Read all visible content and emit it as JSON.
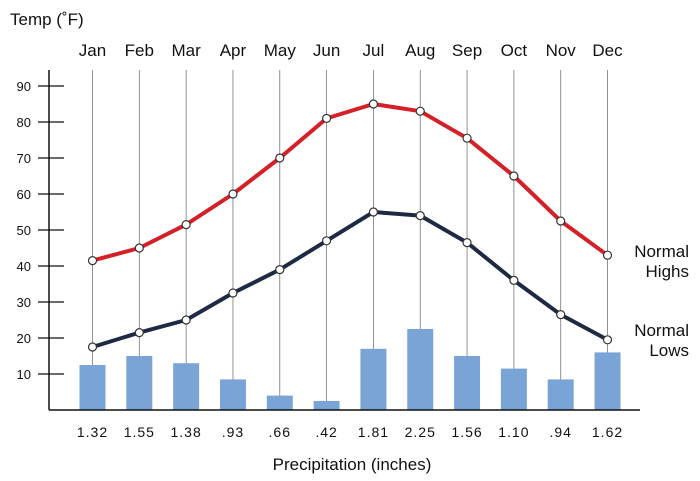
{
  "chart_data": {
    "type": "line",
    "ylabel": "Temp (˚F)",
    "xlabel": "Precipitation (inches)",
    "categories": [
      "Jan",
      "Feb",
      "Mar",
      "Apr",
      "May",
      "Jun",
      "Jul",
      "Aug",
      "Sep",
      "Oct",
      "Nov",
      "Dec"
    ],
    "y_ticks": [
      "10",
      "20",
      "30",
      "40",
      "50",
      "60",
      "70",
      "80",
      "90"
    ],
    "ylim": [
      0,
      100
    ],
    "grid": {
      "vertical": true,
      "horizontal": false
    },
    "series": [
      {
        "name": "Normal Highs",
        "name_lines": [
          "Normal",
          "Highs"
        ],
        "color": "#d42027",
        "values": [
          41.5,
          45,
          51.5,
          60,
          70,
          81,
          85,
          83,
          75.5,
          65,
          52.5,
          43
        ]
      },
      {
        "name": "Normal Lows",
        "name_lines": [
          "Normal",
          "Lows"
        ],
        "color": "#1e2a44",
        "values": [
          17.5,
          21.5,
          25,
          32.5,
          39,
          47,
          55,
          54,
          46.5,
          36,
          26.5,
          19.5
        ]
      }
    ],
    "precipitation": {
      "type": "bar",
      "color": "#7aa3d6",
      "values": [
        1.32,
        1.55,
        1.38,
        0.93,
        0.66,
        0.42,
        1.81,
        2.25,
        1.56,
        1.1,
        0.94,
        1.62
      ],
      "labels": [
        "1.32",
        "1.55",
        "1.38",
        ".93",
        ".66",
        ".42",
        "1.81",
        "2.25",
        "1.56",
        "1.10",
        ".94",
        "1.62"
      ],
      "bar_heights_temp_units": [
        12.5,
        15,
        13,
        8.5,
        4,
        2.5,
        17,
        22.5,
        15,
        11.5,
        8.5,
        16
      ]
    }
  }
}
